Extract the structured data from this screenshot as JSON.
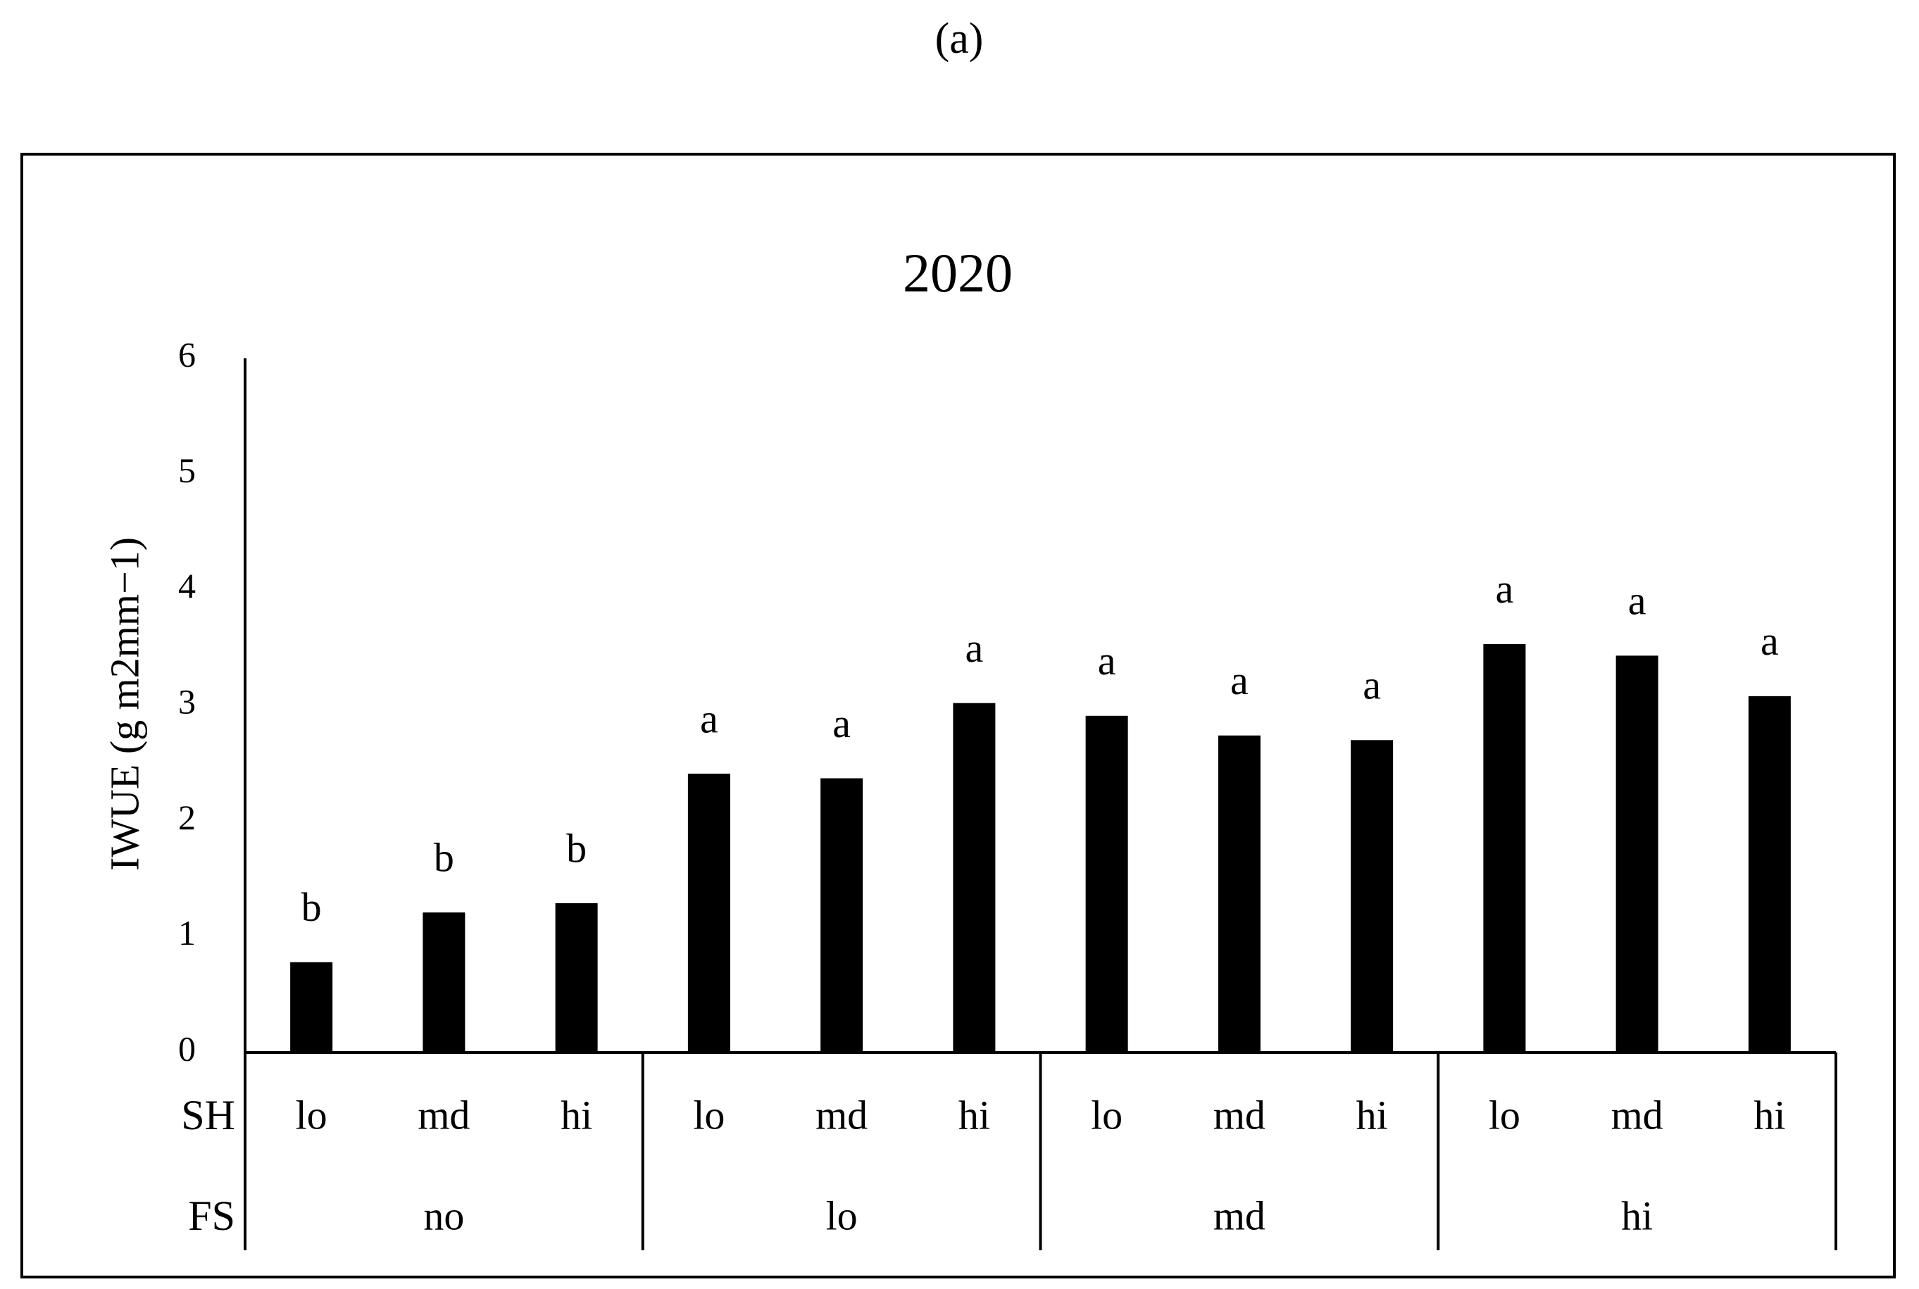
{
  "chart_data": {
    "type": "bar",
    "panel_label": "(a)",
    "title": "2020",
    "y_label": "IWUE (g m2mm−1)",
    "categories": [
      "lo",
      "md",
      "hi",
      "lo",
      "md",
      "hi",
      "lo",
      "md",
      "hi",
      "lo",
      "md",
      "hi"
    ],
    "category_row_label": "SH",
    "groups": [
      "no",
      "lo",
      "md",
      "hi"
    ],
    "group_row_label": "FS",
    "values": [
      0.78,
      1.21,
      1.29,
      2.41,
      2.37,
      3.02,
      2.91,
      2.74,
      2.7,
      3.53,
      3.43,
      3.08
    ],
    "value_labels": [
      "b",
      "b",
      "b",
      "a",
      "a",
      "a",
      "a",
      "a",
      "a",
      "a",
      "a",
      "a"
    ],
    "color": "#000000",
    "ylim": [
      0,
      6
    ],
    "yticks": [
      0,
      1,
      2,
      3,
      4,
      5,
      6
    ],
    "grid": false
  }
}
